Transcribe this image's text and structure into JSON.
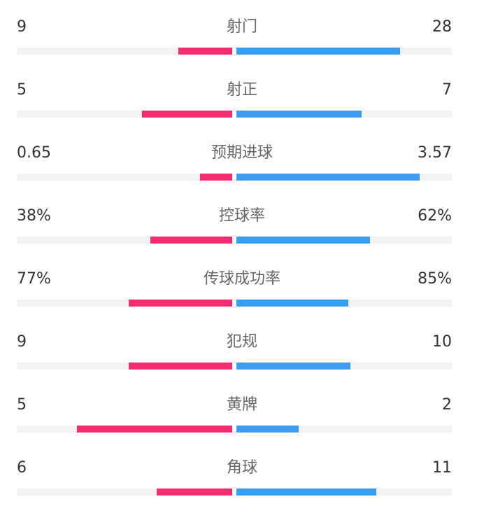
{
  "colors": {
    "home": "#f42b71",
    "away": "#3b9cf0",
    "track": "#f3f3f3",
    "value_text": "#333333",
    "label_text": "#666666"
  },
  "chart_data": {
    "type": "bar",
    "orientation": "horizontal-diverging",
    "title": "",
    "categories": [
      "射门",
      "射正",
      "预期进球",
      "控球率",
      "传球成功率",
      "犯规",
      "黄牌",
      "角球"
    ],
    "rows": [
      {
        "label": "射门",
        "left_text": "9",
        "right_text": "28",
        "left_fraction": 0.25,
        "right_fraction": 0.76
      },
      {
        "label": "射正",
        "left_text": "5",
        "right_text": "7",
        "left_fraction": 0.42,
        "right_fraction": 0.58
      },
      {
        "label": "预期进球",
        "left_text": "0.65",
        "right_text": "3.57",
        "left_fraction": 0.15,
        "right_fraction": 0.85
      },
      {
        "label": "控球率",
        "left_text": "38%",
        "right_text": "62%",
        "left_fraction": 0.38,
        "right_fraction": 0.62
      },
      {
        "label": "传球成功率",
        "left_text": "77%",
        "right_text": "85%",
        "left_fraction": 0.48,
        "right_fraction": 0.52
      },
      {
        "label": "犯规",
        "left_text": "9",
        "right_text": "10",
        "left_fraction": 0.48,
        "right_fraction": 0.53
      },
      {
        "label": "黄牌",
        "left_text": "5",
        "right_text": "2",
        "left_fraction": 0.72,
        "right_fraction": 0.29
      },
      {
        "label": "角球",
        "left_text": "6",
        "right_text": "11",
        "left_fraction": 0.35,
        "right_fraction": 0.65
      }
    ]
  }
}
